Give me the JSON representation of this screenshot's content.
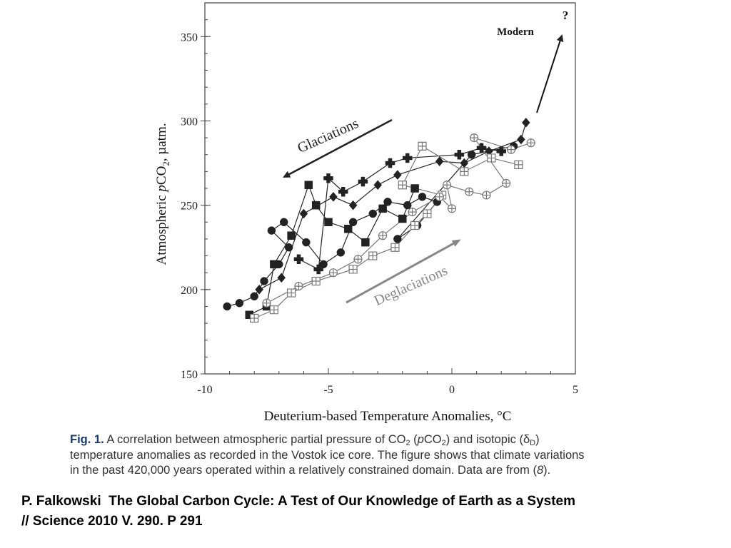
{
  "chart_data": {
    "type": "scatter",
    "xlabel": "Deuterium-based Temperature Anomalies, °C",
    "ylabel": [
      {
        "text": "Atmospheric "
      },
      {
        "italic": "p"
      },
      {
        "text": "CO"
      },
      {
        "sub": "2"
      },
      {
        "text": ", µatm."
      }
    ],
    "xlim": [
      -10,
      5
    ],
    "ylim": [
      150,
      370
    ],
    "xticks": [
      -10,
      -5,
      0,
      5
    ],
    "yticks": [
      150,
      200,
      250,
      300,
      350
    ],
    "minor_xstep": 1,
    "minor_ystep": 10,
    "annotations": {
      "glaciations": "Glaciations",
      "deglaciations": "Deglaciations",
      "modern": "Modern",
      "question": "?"
    },
    "series": [
      {
        "marker": "circle",
        "color": "#222222",
        "x": [
          -9.1,
          -8.6,
          -8.0,
          -7.6,
          -7.0,
          -6.6,
          -7.3,
          -6.8,
          -5.9,
          -5.2,
          -4.5,
          -4.0,
          -3.2,
          -2.6,
          -1.8,
          -1.2,
          -0.6,
          -1.4,
          -2.2,
          0.8,
          2.5
        ],
        "y": [
          190,
          192,
          196,
          205,
          215,
          225,
          235,
          240,
          228,
          215,
          222,
          240,
          245,
          252,
          250,
          255,
          252,
          238,
          230,
          280,
          285
        ]
      },
      {
        "marker": "square",
        "color": "#222222",
        "x": [
          -8.2,
          -7.5,
          -7.2,
          -6.5,
          -5.8,
          -5.5,
          -5.0,
          -4.2,
          -3.5,
          -2.8,
          -2.0,
          -1.5
        ],
        "y": [
          185,
          190,
          215,
          232,
          262,
          250,
          240,
          236,
          228,
          248,
          242,
          260
        ]
      },
      {
        "marker": "cross",
        "color": "#222222",
        "x": [
          -6.2,
          -5.4,
          -5.0,
          -4.4,
          -3.6,
          -2.5,
          -1.8,
          0.3,
          1.2,
          2.0
        ],
        "y": [
          218,
          212,
          266,
          258,
          264,
          275,
          278,
          280,
          284,
          282
        ]
      },
      {
        "marker": "diamond",
        "color": "#222222",
        "x": [
          -7.8,
          -6.9,
          -6.0,
          -4.8,
          -4.0,
          -3.0,
          -2.2,
          -0.5,
          0.5,
          1.5,
          2.8,
          3.0
        ],
        "y": [
          200,
          207,
          245,
          255,
          250,
          262,
          268,
          276,
          275,
          282,
          289,
          299
        ]
      },
      {
        "marker": "square-open",
        "color": "#777777",
        "x": [
          -8.0,
          -7.2,
          -6.5,
          -5.5,
          -4.0,
          -3.2,
          -2.3,
          -1.5,
          -1.0,
          -0.4,
          -2.0,
          -1.2,
          0.5,
          1.6,
          2.7
        ],
        "y": [
          183,
          188,
          198,
          205,
          212,
          220,
          225,
          238,
          245,
          256,
          262,
          285,
          270,
          278,
          274
        ]
      },
      {
        "marker": "circle-open",
        "color": "#777777",
        "x": [
          -7.5,
          -6.2,
          -4.8,
          -3.8,
          -2.8,
          -1.6,
          -0.5,
          0.0,
          -0.2,
          0.7,
          1.4,
          2.2,
          0.9,
          2.4,
          3.2
        ],
        "y": [
          192,
          202,
          210,
          218,
          232,
          246,
          255,
          248,
          262,
          258,
          256,
          263,
          290,
          283,
          287
        ]
      }
    ]
  },
  "caption": {
    "lines": [
      [
        {
          "bold": "Fig. 1."
        },
        {
          "text": " A correlation between atmospheric partial pressure of CO"
        },
        {
          "sub": "2"
        },
        {
          "text": " ("
        },
        {
          "italic": "p"
        },
        {
          "text": "CO"
        },
        {
          "sub": "2"
        },
        {
          "text": ") and isotopic (δ"
        },
        {
          "sub": "D"
        },
        {
          "text": ")"
        }
      ],
      [
        {
          "text": "temperature anomalies as recorded in the Vostok ice core. The figure shows that climate variations"
        }
      ],
      [
        {
          "text": "in the past 420,000 years operated within a relatively constrained domain. Data are from ("
        },
        {
          "italic": "8"
        },
        {
          "text": ")."
        }
      ]
    ]
  },
  "citation": {
    "lines": [
      "P. Falkowski  The Global Carbon Cycle: A Test of Our Knowledge of Earth as a System",
      "// Science 2010 V. 290. P 291"
    ]
  }
}
